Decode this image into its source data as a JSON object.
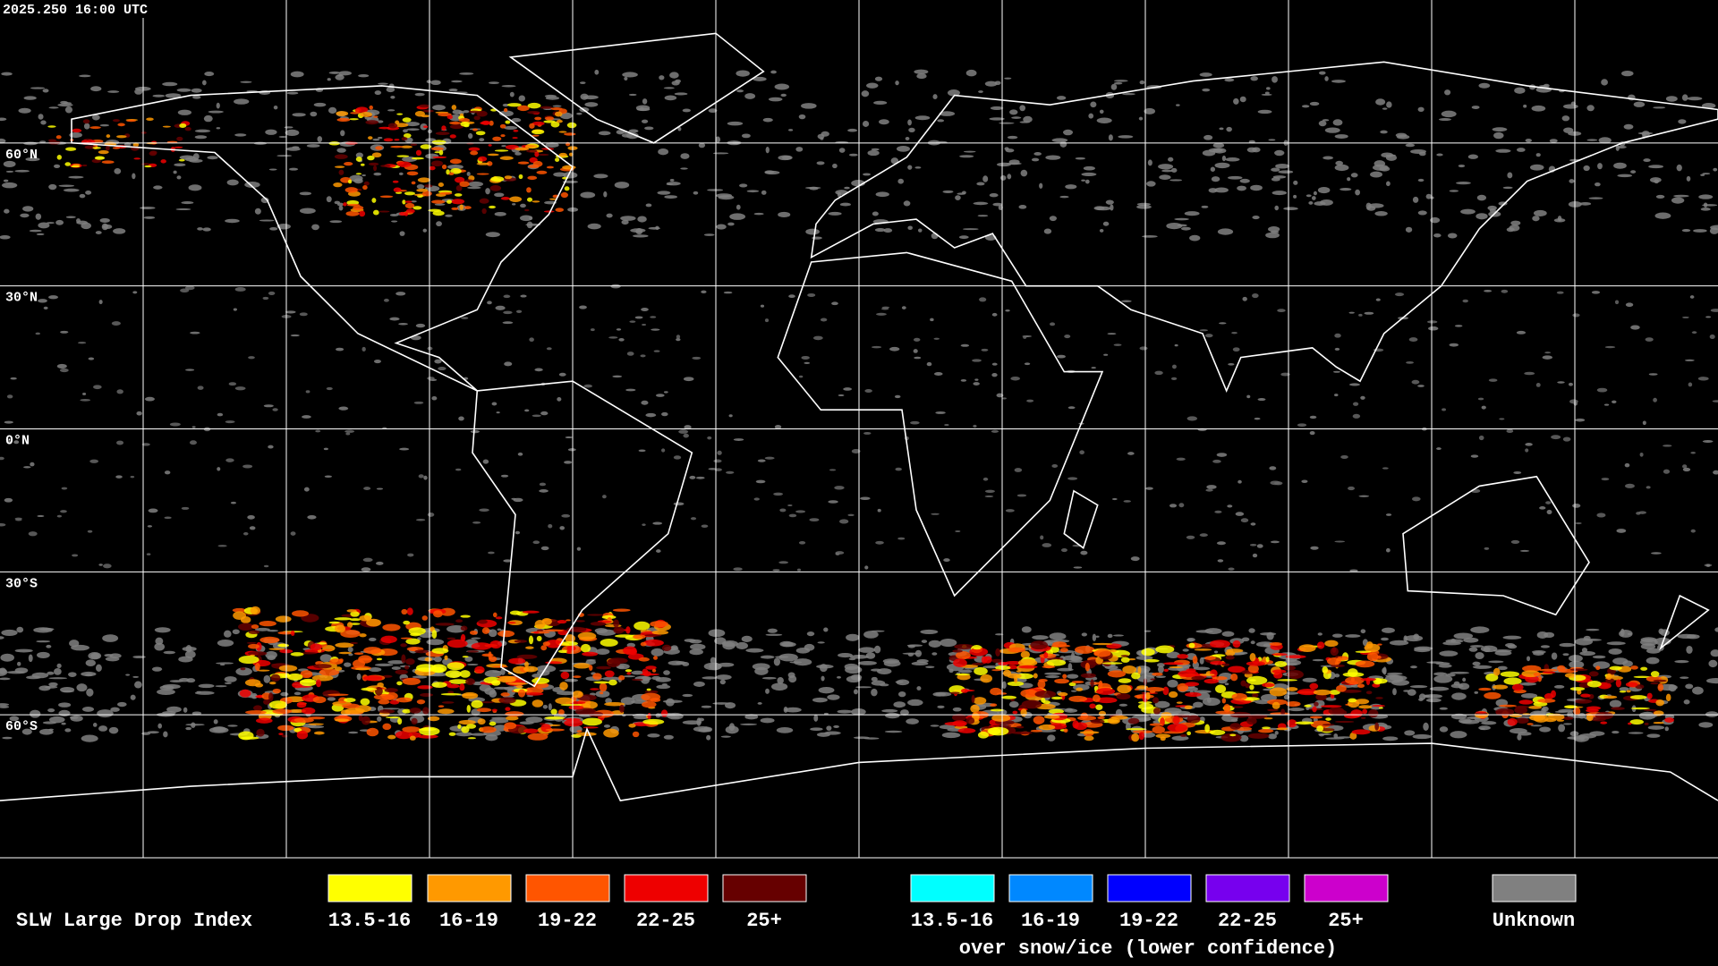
{
  "header": {
    "timestamp": "2025.250 16:00 UTC"
  },
  "map": {
    "latitude_labels": [
      "60°N",
      "30°N",
      "0°N",
      "30°S",
      "60°S"
    ]
  },
  "legend": {
    "title": "SLW Large Drop Index",
    "items": [
      {
        "label": "13.5-16",
        "color": "#ffff00"
      },
      {
        "label": "16-19",
        "color": "#ff9900"
      },
      {
        "label": "19-22",
        "color": "#ff5500"
      },
      {
        "label": "22-25",
        "color": "#ee0000"
      },
      {
        "label": "25+",
        "color": "#660000"
      }
    ],
    "snow_items": [
      {
        "label": "13.5-16",
        "color": "#00ffff"
      },
      {
        "label": "16-19",
        "color": "#0088ff"
      },
      {
        "label": "19-22",
        "color": "#0000ff"
      },
      {
        "label": "22-25",
        "color": "#7700ee"
      },
      {
        "label": "25+",
        "color": "#cc00cc"
      }
    ],
    "snow_caption": "over snow/ice (lower confidence)",
    "unknown": {
      "label": "Unknown",
      "color": "#808080"
    }
  }
}
